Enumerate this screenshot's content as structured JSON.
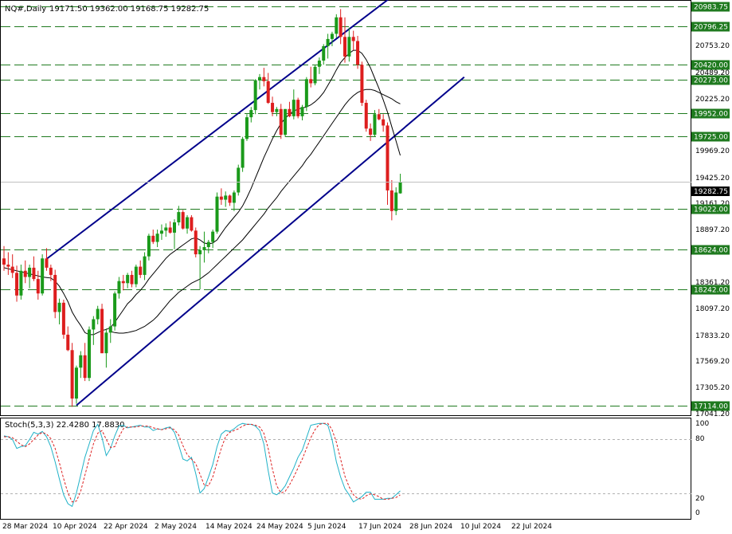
{
  "header": {
    "symbol_tf": "NQ#,Daily",
    "ohlc": "19171.50 19362.00 19168.75 19282.75"
  },
  "stoch": {
    "label": "Stoch(5,3,3) 22.4280 17.8830",
    "levels": [
      "100",
      "80",
      "20",
      "0"
    ],
    "main_color": "#20b2c8",
    "signal_color": "#dd2222"
  },
  "price_axis": {
    "ticks": [
      "20753.20",
      "20489.20",
      "20225.20",
      "19969.20",
      "19425.20",
      "19161.20",
      "18897.20",
      "18361.20",
      "18097.20",
      "17833.20",
      "17569.20",
      "17305.20",
      "17041.20"
    ],
    "current": "19282.75"
  },
  "levels": [
    "20983.75",
    "20796.25",
    "20420.00",
    "20273.00",
    "19952.00",
    "19725.00",
    "19022.00",
    "18624.00",
    "18242.00",
    "17114.00"
  ],
  "time_axis": [
    "28 Mar 2024",
    "10 Apr 2024",
    "22 Apr 2024",
    "2 May 2024",
    "14 May 2024",
    "24 May 2024",
    "5 Jun 2024",
    "17 Jun 2024",
    "28 Jun 2024",
    "10 Jul 2024",
    "22 Jul 2024"
  ],
  "colors": {
    "bull": "#1a9a1a",
    "bear": "#dd1e1e",
    "level_line": "#1f7a1f",
    "level_box": "#1f7a1f",
    "channel": "#00008b",
    "ma": "#000000",
    "current_box": "#000000"
  },
  "chart_data": {
    "type": "candlestick",
    "timeframe": "Daily",
    "candles": [
      [
        18540,
        18660,
        18420,
        18480
      ],
      [
        18480,
        18600,
        18380,
        18460
      ],
      [
        18460,
        18580,
        18350,
        18400
      ],
      [
        18400,
        18470,
        18120,
        18180
      ],
      [
        18180,
        18480,
        18140,
        18420
      ],
      [
        18420,
        18520,
        18300,
        18360
      ],
      [
        18360,
        18480,
        18250,
        18450
      ],
      [
        18450,
        18560,
        18320,
        18340
      ],
      [
        18340,
        18420,
        18140,
        18200
      ],
      [
        18200,
        18580,
        18180,
        18540
      ],
      [
        18540,
        18640,
        18420,
        18450
      ],
      [
        18450,
        18480,
        18320,
        18380
      ],
      [
        18380,
        18430,
        17960,
        18020
      ],
      [
        18020,
        18150,
        17900,
        18110
      ],
      [
        18110,
        18140,
        17760,
        17800
      ],
      [
        17800,
        17880,
        17640,
        17650
      ],
      [
        17650,
        17720,
        17100,
        17180
      ],
      [
        17180,
        17500,
        17130,
        17480
      ],
      [
        17480,
        17640,
        17380,
        17600
      ],
      [
        17600,
        17720,
        17350,
        17380
      ],
      [
        17380,
        17880,
        17350,
        17850
      ],
      [
        17850,
        17980,
        17700,
        17950
      ],
      [
        17950,
        18080,
        17900,
        18050
      ],
      [
        18050,
        18100,
        17620,
        17620
      ],
      [
        17620,
        17860,
        17480,
        17820
      ],
      [
        17820,
        17950,
        17720,
        17880
      ],
      [
        17880,
        18220,
        17840,
        18200
      ],
      [
        18200,
        18360,
        18150,
        18320
      ],
      [
        18320,
        18380,
        18230,
        18300
      ],
      [
        18300,
        18400,
        18250,
        18380
      ],
      [
        18380,
        18420,
        18260,
        18290
      ],
      [
        18290,
        18480,
        18260,
        18460
      ],
      [
        18460,
        18520,
        18350,
        18380
      ],
      [
        18380,
        18600,
        18330,
        18560
      ],
      [
        18560,
        18780,
        18520,
        18760
      ],
      [
        18760,
        18820,
        18680,
        18700
      ],
      [
        18700,
        18820,
        18650,
        18780
      ],
      [
        18780,
        18870,
        18720,
        18810
      ],
      [
        18810,
        18880,
        18750,
        18840
      ],
      [
        18840,
        18900,
        18780,
        18790
      ],
      [
        18790,
        18920,
        18630,
        18890
      ],
      [
        18890,
        19050,
        18860,
        18990
      ],
      [
        18990,
        19010,
        18820,
        18830
      ],
      [
        18830,
        18960,
        18780,
        18940
      ],
      [
        18940,
        18960,
        18800,
        18810
      ],
      [
        18810,
        18840,
        18550,
        18580
      ],
      [
        18580,
        18660,
        18240,
        18620
      ],
      [
        18620,
        18800,
        18500,
        18650
      ],
      [
        18650,
        18720,
        18590,
        18700
      ],
      [
        18700,
        18820,
        18640,
        18800
      ],
      [
        18800,
        19180,
        18780,
        19140
      ],
      [
        19140,
        19220,
        19060,
        19110
      ],
      [
        19110,
        19190,
        19040,
        19150
      ],
      [
        19150,
        19160,
        19050,
        19080
      ],
      [
        19080,
        19200,
        19000,
        19180
      ],
      [
        19180,
        19450,
        19150,
        19420
      ],
      [
        19420,
        19720,
        19380,
        19700
      ],
      [
        19700,
        19940,
        19680,
        19910
      ],
      [
        19910,
        20010,
        19860,
        19980
      ],
      [
        19980,
        20280,
        19940,
        20270
      ],
      [
        20270,
        20330,
        20180,
        20300
      ],
      [
        20300,
        20390,
        20210,
        20260
      ],
      [
        20260,
        20340,
        20040,
        20050
      ],
      [
        20050,
        20110,
        19920,
        19960
      ],
      [
        19960,
        20010,
        19920,
        19990
      ],
      [
        19990,
        20040,
        19700,
        19740
      ],
      [
        19740,
        19990,
        19720,
        19990
      ],
      [
        19990,
        20060,
        19910,
        19920
      ],
      [
        19920,
        20180,
        19890,
        20080
      ],
      [
        20080,
        20100,
        19900,
        19920
      ],
      [
        19920,
        20030,
        19880,
        20010
      ],
      [
        20010,
        20300,
        19970,
        20280
      ],
      [
        20280,
        20400,
        20200,
        20240
      ],
      [
        20240,
        20420,
        20220,
        20400
      ],
      [
        20400,
        20490,
        20330,
        20460
      ],
      [
        20460,
        20620,
        20420,
        20600
      ],
      [
        20600,
        20720,
        20480,
        20670
      ],
      [
        20670,
        20740,
        20600,
        20720
      ],
      [
        20720,
        20910,
        20680,
        20880
      ],
      [
        20880,
        20960,
        20620,
        20690
      ],
      [
        20690,
        20880,
        20440,
        20500
      ],
      [
        20500,
        20780,
        20450,
        20690
      ],
      [
        20690,
        20750,
        20560,
        20650
      ],
      [
        20650,
        20700,
        20380,
        20420
      ],
      [
        20420,
        20450,
        20020,
        20050
      ],
      [
        20050,
        20080,
        19770,
        19800
      ],
      [
        19800,
        19850,
        19680,
        19740
      ],
      [
        19740,
        19980,
        19720,
        19940
      ],
      [
        19940,
        19990,
        19880,
        19890
      ],
      [
        19890,
        19940,
        19770,
        19830
      ],
      [
        19830,
        19860,
        19060,
        19200
      ],
      [
        19200,
        19300,
        18910,
        19000
      ],
      [
        19000,
        19230,
        18960,
        19180
      ],
      [
        19171.5,
        19362,
        19168.75,
        19282.75
      ]
    ],
    "ma_fast": [
      18450,
      18440,
      18430,
      18420,
      18410,
      18400,
      18390,
      18380,
      18370,
      18360,
      18355,
      18350,
      18320,
      18270,
      18200,
      18120,
      18020,
      17950,
      17890,
      17820,
      17800,
      17800,
      17820,
      17840,
      17850,
      17870,
      17920,
      17980,
      18040,
      18100,
      18140,
      18190,
      18230,
      18280,
      18340,
      18390,
      18440,
      18490,
      18540,
      18580,
      18610,
      18640,
      18670,
      18700,
      18730,
      18740,
      18720,
      18690,
      18680,
      18690,
      18720,
      18780,
      18840,
      18890,
      18940,
      18990,
      19050,
      19130,
      19220,
      19320,
      19420,
      19520,
      19610,
      19700,
      19780,
      19850,
      19900,
      19940,
      19970,
      19990,
      20000,
      20010,
      20030,
      20060,
      20100,
      20150,
      20220,
      20290,
      20370,
      20440,
      20490,
      20530,
      20560,
      20560,
      20530,
      20470,
      20390,
      20290,
      20190,
      20080,
      19960,
      19820,
      19680,
      19540
    ],
    "ma_slow": [
      null,
      null,
      null,
      null,
      null,
      null,
      null,
      null,
      null,
      null,
      null,
      null,
      null,
      null,
      null,
      null,
      null,
      null,
      null,
      null,
      null,
      null,
      null,
      null,
      null,
      17830,
      17820,
      17815,
      17815,
      17820,
      17830,
      17840,
      17860,
      17880,
      17910,
      17940,
      17980,
      18030,
      18080,
      18130,
      18170,
      18210,
      18240,
      18270,
      18300,
      18320,
      18340,
      18370,
      18400,
      18440,
      18480,
      18520,
      18560,
      18600,
      18640,
      18680,
      18720,
      18770,
      18820,
      18870,
      18920,
      18970,
      19030,
      19080,
      19130,
      19190,
      19240,
      19290,
      19340,
      19390,
      19440,
      19500,
      19550,
      19610,
      19670,
      19730,
      19790,
      19850,
      19910,
      19970,
      20030,
      20080,
      20120,
      20150,
      20170,
      20180,
      20180,
      20170,
      20150,
      20130,
      20110,
      20090,
      20060,
      20040
    ],
    "stoch_main": [
      84,
      83,
      80,
      70,
      72,
      73,
      80,
      88,
      86,
      89,
      83,
      72,
      55,
      36,
      18,
      8,
      5,
      20,
      40,
      60,
      75,
      90,
      97,
      82,
      62,
      70,
      84,
      95,
      96,
      93,
      94,
      95,
      96,
      94,
      94,
      90,
      92,
      91,
      93,
      94,
      88,
      74,
      58,
      56,
      60,
      42,
      20,
      25,
      38,
      52,
      72,
      86,
      90,
      89,
      92,
      96,
      98,
      97,
      97,
      95,
      90,
      75,
      45,
      20,
      18,
      22,
      28,
      38,
      48,
      60,
      68,
      82,
      96,
      97,
      98,
      98,
      96,
      80,
      55,
      38,
      25,
      18,
      10,
      13,
      16,
      21,
      21,
      13,
      13,
      13,
      14,
      14,
      18,
      22.4
    ],
    "stoch_signal": [
      83,
      83,
      82,
      78,
      74,
      72,
      75,
      80,
      85,
      88,
      86,
      81,
      70,
      54,
      36,
      20,
      10,
      11,
      22,
      40,
      58,
      75,
      87,
      90,
      80,
      71,
      72,
      83,
      92,
      94,
      94,
      94,
      95,
      95,
      95,
      93,
      92,
      91,
      92,
      93,
      91,
      85,
      73,
      63,
      58,
      53,
      41,
      29,
      28,
      38,
      54,
      70,
      83,
      88,
      90,
      92,
      95,
      97,
      97,
      96,
      94,
      87,
      70,
      47,
      28,
      20,
      22,
      29,
      38,
      48,
      58,
      70,
      82,
      91,
      97,
      98,
      98,
      91,
      77,
      58,
      39,
      27,
      18,
      14,
      13,
      17,
      19,
      18,
      16,
      13,
      13,
      14,
      15,
      17.9
    ],
    "channel": {
      "upper": [
        [
          10,
          18535
        ],
        [
          98,
          21300
        ]
      ],
      "lower": [
        [
          17,
          17114
        ],
        [
          108,
          20300
        ]
      ]
    },
    "horizontal_levels": [
      20983.75,
      20796.25,
      20420.0,
      20273.0,
      19952.0,
      19725.0,
      19022.0,
      18624.0,
      18242.0,
      17114.0
    ],
    "price_axis_range": [
      17041.2,
      21017.2
    ],
    "stoch_range": [
      0,
      100
    ],
    "stoch_levels": [
      80,
      20
    ],
    "grid": false
  }
}
